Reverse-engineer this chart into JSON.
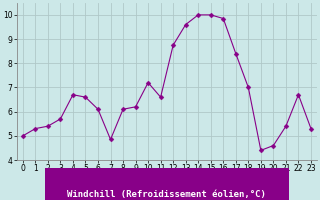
{
  "x": [
    0,
    1,
    2,
    3,
    4,
    5,
    6,
    7,
    8,
    9,
    10,
    11,
    12,
    13,
    14,
    15,
    16,
    17,
    18,
    19,
    20,
    21,
    22,
    23
  ],
  "y": [
    5.0,
    5.3,
    5.4,
    5.7,
    6.7,
    6.6,
    6.1,
    4.85,
    6.1,
    6.2,
    7.2,
    6.6,
    8.75,
    9.6,
    10.0,
    10.0,
    9.85,
    8.4,
    7.0,
    4.4,
    4.6,
    5.4,
    6.7,
    5.3
  ],
  "line_color": "#880088",
  "marker": "D",
  "marker_size": 2.5,
  "bg_color": "#cce8e8",
  "grid_color": "#b0c8c8",
  "xlabel": "Windchill (Refroidissement éolien,°C)",
  "xlabel_color": "#ffffff",
  "xlabel_bg": "#880088",
  "ylim": [
    4,
    10.5
  ],
  "xlim": [
    -0.5,
    23.5
  ],
  "yticks": [
    4,
    5,
    6,
    7,
    8,
    9,
    10
  ],
  "xticks": [
    0,
    1,
    2,
    3,
    4,
    5,
    6,
    7,
    8,
    9,
    10,
    11,
    12,
    13,
    14,
    15,
    16,
    17,
    18,
    19,
    20,
    21,
    22,
    23
  ],
  "tick_label_size": 5.5,
  "xlabel_fontsize": 6.5,
  "linewidth": 0.8
}
